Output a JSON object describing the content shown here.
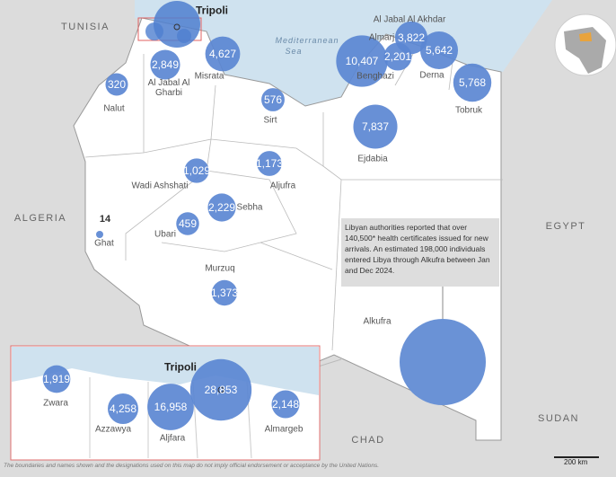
{
  "countries": {
    "tunisia": "TUNISIA",
    "algeria": "ALGERIA",
    "egypt": "EGYPT",
    "sudan": "SUDAN",
    "chad": "CHAD"
  },
  "sea": [
    "Mediterranean",
    "Sea"
  ],
  "tripoli_main": "Tripoli",
  "alkufra": "Alkufra",
  "bubbles": [
    {
      "name": "Nalut",
      "value": 320,
      "label": "320"
    },
    {
      "name": "Al Jabal Al Gharbi",
      "value": 2849,
      "label": "2,849"
    },
    {
      "name": "Misrata",
      "value": 4627,
      "label": "4,627"
    },
    {
      "name": "Sirt",
      "value": 576,
      "label": "576"
    },
    {
      "name": "Benghazi",
      "value": 10407,
      "label": "10,407"
    },
    {
      "name": "Almarj",
      "value": 2201,
      "label": "2,201"
    },
    {
      "name": "Al Jabal Al Akhdar",
      "value": 3822,
      "label": "3,822"
    },
    {
      "name": "Derna",
      "value": 5642,
      "label": "5,642"
    },
    {
      "name": "Tobruk",
      "value": 5768,
      "label": "5,768"
    },
    {
      "name": "Ejdabia",
      "value": 7837,
      "label": "7,837"
    },
    {
      "name": "Aljufra",
      "value": 1173,
      "label": "1,173"
    },
    {
      "name": "Wadi Ashshati",
      "value": 1029,
      "label": "1,029"
    },
    {
      "name": "Sebha",
      "value": 2229,
      "label": "2,229"
    },
    {
      "name": "Ubari",
      "value": 459,
      "label": "459"
    },
    {
      "name": "Ghat",
      "value": 14,
      "label": "14"
    },
    {
      "name": "Murzuq",
      "value": 1373,
      "label": "1,373"
    }
  ],
  "inset_bubbles": [
    {
      "name": "Zwara",
      "value": 1919,
      "label": "1,919"
    },
    {
      "name": "Azzawya",
      "value": 4258,
      "label": "4,258"
    },
    {
      "name": "Aljfara",
      "value": 16958,
      "label": "16,958"
    },
    {
      "name": "Tripoli",
      "value": 28853,
      "label": "28,853"
    },
    {
      "name": "Almargeb",
      "value": 2148,
      "label": "2,148"
    }
  ],
  "note": "Libyan authorities reported that over 140,500* health certificates issued for new arrivals. An estimated 198,000 individuals entered Libya through Alkufra between Jan and Dec 2024.",
  "scale_bar": "200 km",
  "disclaimer": "The boundaries and names shown and the designations used on this map do not imply official endorsement or acceptance by the United Nations."
}
